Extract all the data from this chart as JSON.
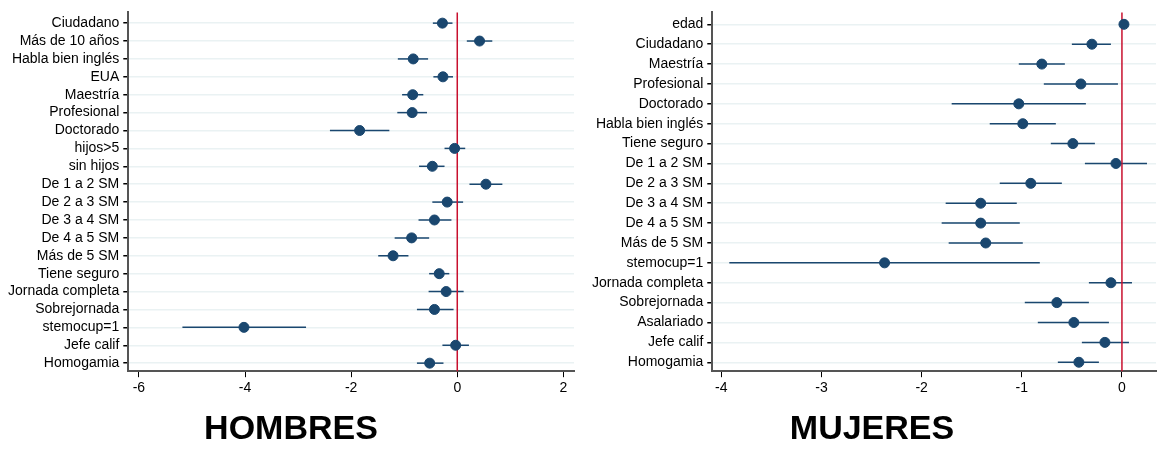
{
  "chart_data": [
    {
      "type": "scatter",
      "orientation": "horizontal",
      "title": "HOMBRES",
      "categories": [
        "Ciudadano",
        "Más de 10 años",
        "Habla bien inglés",
        "EUA",
        "Maestría",
        "Profesional",
        "Doctorado",
        "hijos>5",
        "sin hijos",
        "De 1 a 2 SM",
        "De 2 a 3 SM",
        "De 3 a 4 SM",
        "De 4 a 5 SM",
        "Más de 5 SM",
        "Tiene seguro",
        "Jornada completa",
        "Sobrejornada",
        "stemocup=1",
        "Jefe calif",
        "Homogamia"
      ],
      "series": [
        {
          "color": "#1a476f",
          "values": [
            -0.28,
            0.42,
            -0.83,
            -0.27,
            -0.84,
            -0.85,
            -1.84,
            -0.05,
            -0.47,
            0.54,
            -0.19,
            -0.43,
            -0.86,
            -1.21,
            -0.34,
            -0.21,
            -0.43,
            -4.02,
            -0.03,
            -0.52
          ],
          "errors": [
            [
              -0.46,
              -0.09
            ],
            [
              0.18,
              0.66
            ],
            [
              -1.12,
              -0.55
            ],
            [
              -0.45,
              -0.08
            ],
            [
              -1.04,
              -0.64
            ],
            [
              -1.13,
              -0.57
            ],
            [
              -2.4,
              -1.28
            ],
            [
              -0.24,
              0.15
            ],
            [
              -0.72,
              -0.24
            ],
            [
              0.23,
              0.85
            ],
            [
              -0.47,
              0.11
            ],
            [
              -0.73,
              -0.11
            ],
            [
              -1.18,
              -0.53
            ],
            [
              -1.49,
              -0.92
            ],
            [
              -0.53,
              -0.15
            ],
            [
              -0.54,
              0.12
            ],
            [
              -0.76,
              -0.07
            ],
            [
              -5.18,
              -2.85
            ],
            [
              -0.28,
              0.22
            ],
            [
              -0.76,
              -0.26
            ]
          ]
        }
      ],
      "xlim": [
        -6.2,
        2.2
      ],
      "xticks": [
        -6,
        -4,
        -2,
        0,
        2
      ],
      "ref_lines": [
        {
          "axis": "x",
          "value": 0,
          "color": "#c8102e"
        }
      ],
      "grid": "y",
      "marker": "circle",
      "legend": false
    },
    {
      "type": "scatter",
      "orientation": "horizontal",
      "title": "MUJERES",
      "categories": [
        "edad",
        "Ciudadano",
        "Maestría",
        "Profesional",
        "Doctorado",
        "Habla bien inglés",
        "Tiene seguro",
        "De 1 a 2 SM",
        "De 2 a 3 SM",
        "De 3 a 4 SM",
        "De 4 a 5 SM",
        "Más de 5 SM",
        "stemocup=1",
        "Jornada completa",
        "Sobrejornada",
        "Asalariado",
        "Jefe calif",
        "Homogamia"
      ],
      "series": [
        {
          "color": "#1a476f",
          "values": [
            0.02,
            -0.3,
            -0.8,
            -0.41,
            -1.03,
            -0.99,
            -0.49,
            -0.06,
            -0.91,
            -1.41,
            -1.41,
            -1.36,
            -2.37,
            -0.11,
            -0.65,
            -0.48,
            -0.17,
            -0.43
          ],
          "errors": [
            null,
            [
              -0.5,
              -0.11
            ],
            [
              -1.03,
              -0.57
            ],
            [
              -0.78,
              -0.04
            ],
            [
              -1.7,
              -0.36
            ],
            [
              -1.32,
              -0.66
            ],
            [
              -0.71,
              -0.27
            ],
            [
              -0.37,
              0.25
            ],
            [
              -1.22,
              -0.6
            ],
            [
              -1.76,
              -1.05
            ],
            [
              -1.8,
              -1.02
            ],
            [
              -1.73,
              -0.99
            ],
            [
              -3.92,
              -0.82
            ],
            [
              -0.33,
              0.1
            ],
            [
              -0.97,
              -0.33
            ],
            [
              -0.84,
              -0.13
            ],
            [
              -0.4,
              0.07
            ],
            [
              -0.64,
              -0.23
            ]
          ]
        }
      ],
      "xlim": [
        -4.09,
        0.34
      ],
      "xticks": [
        -4,
        -3,
        -2,
        -1,
        0
      ],
      "ref_lines": [
        {
          "axis": "x",
          "value": 0,
          "color": "#c8102e"
        }
      ],
      "grid": "y",
      "marker": "circle",
      "legend": false
    }
  ]
}
